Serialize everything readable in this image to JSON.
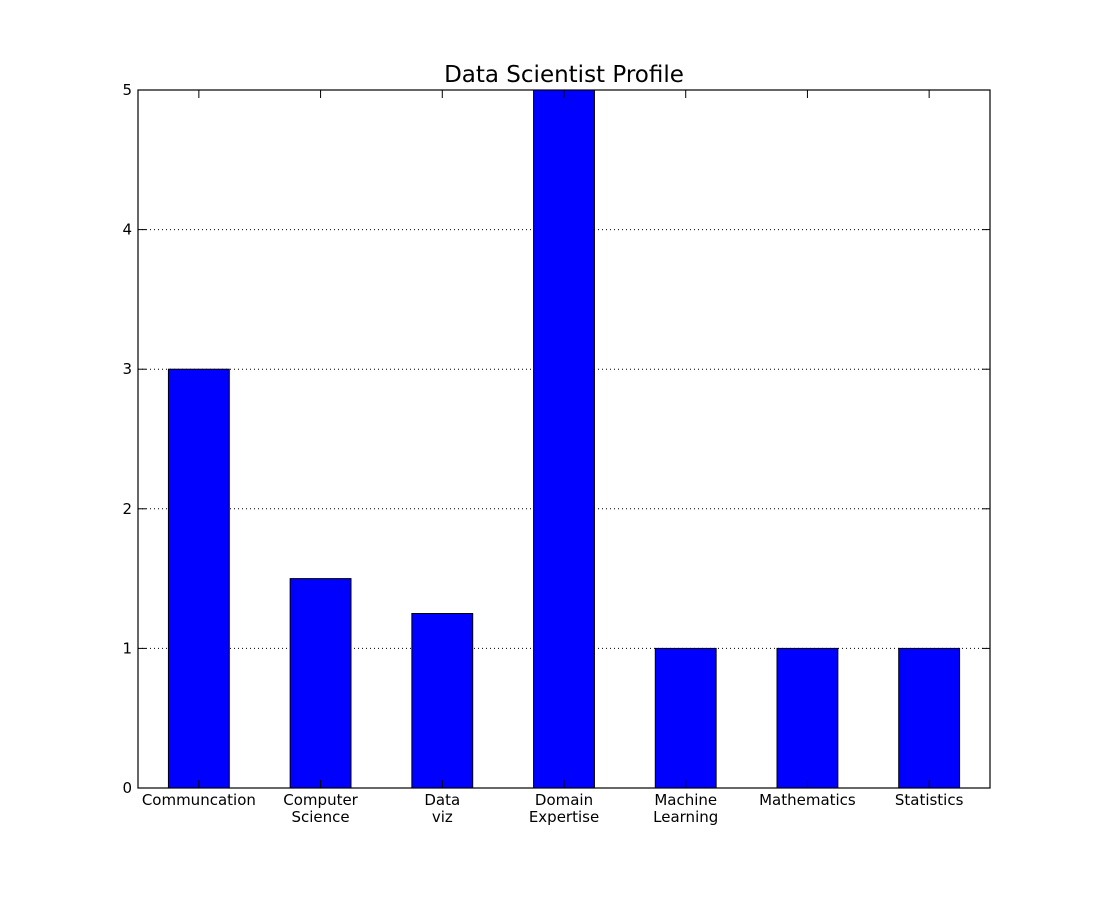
{
  "chart_data": {
    "type": "bar",
    "title": "Data Scientist Profile",
    "xlabel": "",
    "ylabel": "",
    "categories": [
      [
        "Communcation"
      ],
      [
        "Computer",
        "Science"
      ],
      [
        "Data",
        "viz"
      ],
      [
        "Domain",
        "Expertise"
      ],
      [
        "Machine",
        "Learning"
      ],
      [
        "Mathematics"
      ],
      [
        "Statistics"
      ]
    ],
    "values": [
      3,
      1.5,
      1.25,
      5,
      1,
      1,
      1
    ],
    "ylim": [
      0,
      5
    ],
    "yticks": [
      0,
      1,
      2,
      3,
      4,
      5
    ],
    "grid": "horizontal dotted",
    "legend": "none",
    "bar_color": "#0000ff",
    "edge_color": "#000000"
  }
}
